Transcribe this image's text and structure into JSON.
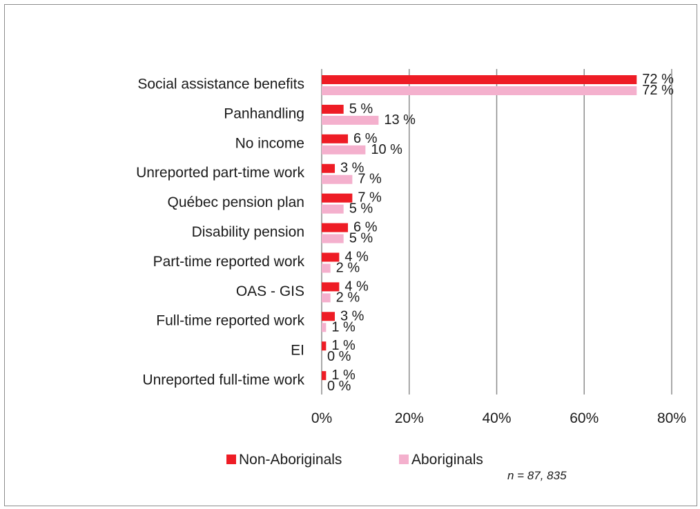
{
  "chart_data": {
    "type": "bar",
    "orientation": "horizontal",
    "categories": [
      "Social assistance benefits",
      "Panhandling",
      "No income",
      "Unreported part-time work",
      "Québec pension plan",
      "Disability pension",
      "Part-time reported work",
      "OAS - GIS",
      "Full-time reported work",
      "EI",
      "Unreported full-time work"
    ],
    "series": [
      {
        "name": "Non-Aboriginals",
        "color": "#ee1c25",
        "values": [
          72,
          5,
          6,
          3,
          7,
          6,
          4,
          4,
          3,
          1,
          1
        ],
        "labels": [
          "72 %",
          "5 %",
          "6 %",
          "3 %",
          "7 %",
          "6 %",
          "4 %",
          "4 %",
          "3 %",
          "1 %",
          "1 %"
        ]
      },
      {
        "name": "Aboriginals",
        "color": "#f4b0cd",
        "values": [
          72,
          13,
          10,
          7,
          5,
          5,
          2,
          2,
          1,
          0,
          0
        ],
        "labels": [
          "72 %",
          "13 %",
          "10 %",
          "7 %",
          "5 %",
          "5 %",
          "2 %",
          "2 %",
          "1 %",
          "0 %",
          "0 %"
        ]
      }
    ],
    "xlim": [
      0,
      80
    ],
    "x_ticks": [
      {
        "value": 0,
        "label": "0%"
      },
      {
        "value": 20,
        "label": "20%"
      },
      {
        "value": 40,
        "label": "40%"
      },
      {
        "value": 60,
        "label": "60%"
      },
      {
        "value": 80,
        "label": "80%"
      }
    ],
    "grid": true,
    "legend_position": "bottom",
    "note": "n = 87, 835"
  }
}
